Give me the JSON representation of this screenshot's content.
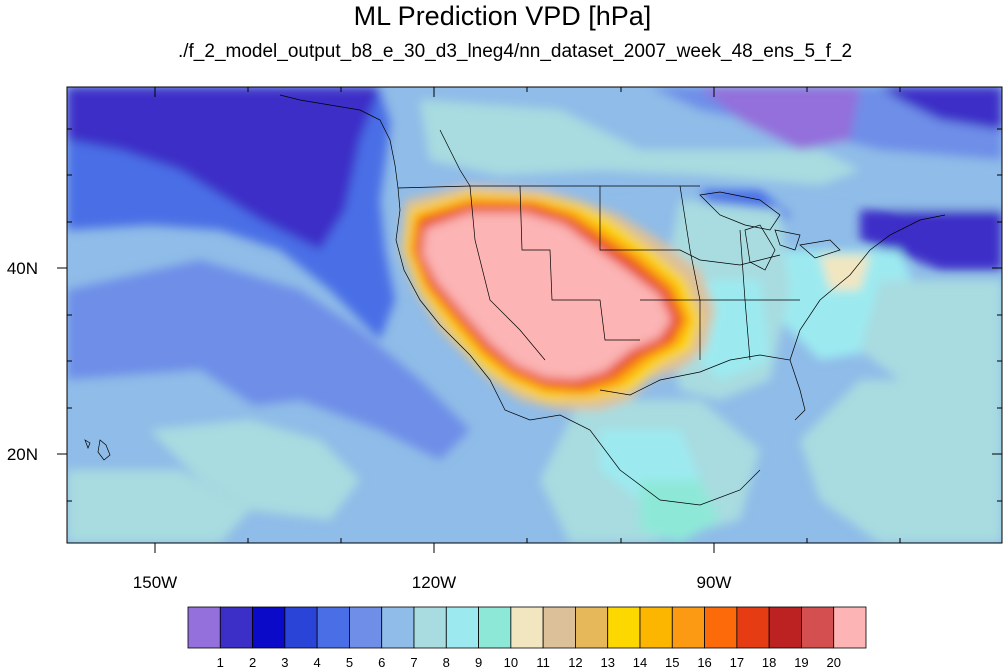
{
  "title": "ML Prediction VPD [hPa]",
  "subtitle": "./f_2_model_output_b8_e_30_d3_lneg4/nn_dataset_2007_week_48_ens_5_f_2",
  "map": {
    "lon_range": [
      -160,
      -60
    ],
    "lat_range": [
      10,
      59
    ],
    "lon_ticks": [
      {
        "value": -150,
        "label": "150W"
      },
      {
        "value": -120,
        "label": "120W"
      },
      {
        "value": -90,
        "label": "90W"
      }
    ],
    "lat_ticks": [
      {
        "value": 40,
        "label": "40N"
      },
      {
        "value": 20,
        "label": "20N"
      }
    ]
  },
  "colorbar": {
    "labels": [
      "1",
      "2",
      "3",
      "4",
      "5",
      "6",
      "7",
      "8",
      "9",
      "10",
      "11",
      "12",
      "13",
      "14",
      "15",
      "16",
      "17",
      "18",
      "19",
      "20"
    ],
    "colors": [
      "#9370db",
      "#3c2fc8",
      "#0a0ac8",
      "#2a44d8",
      "#4a6ee6",
      "#6e8ee8",
      "#8fbce8",
      "#a8dce0",
      "#9ceaf0",
      "#8ee8d8",
      "#f2e6c0",
      "#dcc09a",
      "#e6b85a",
      "#fcd800",
      "#fcb600",
      "#fc9a14",
      "#fc6a0a",
      "#e63c14",
      "#bc2222",
      "#d45050",
      "#fcb4b4"
    ]
  }
}
